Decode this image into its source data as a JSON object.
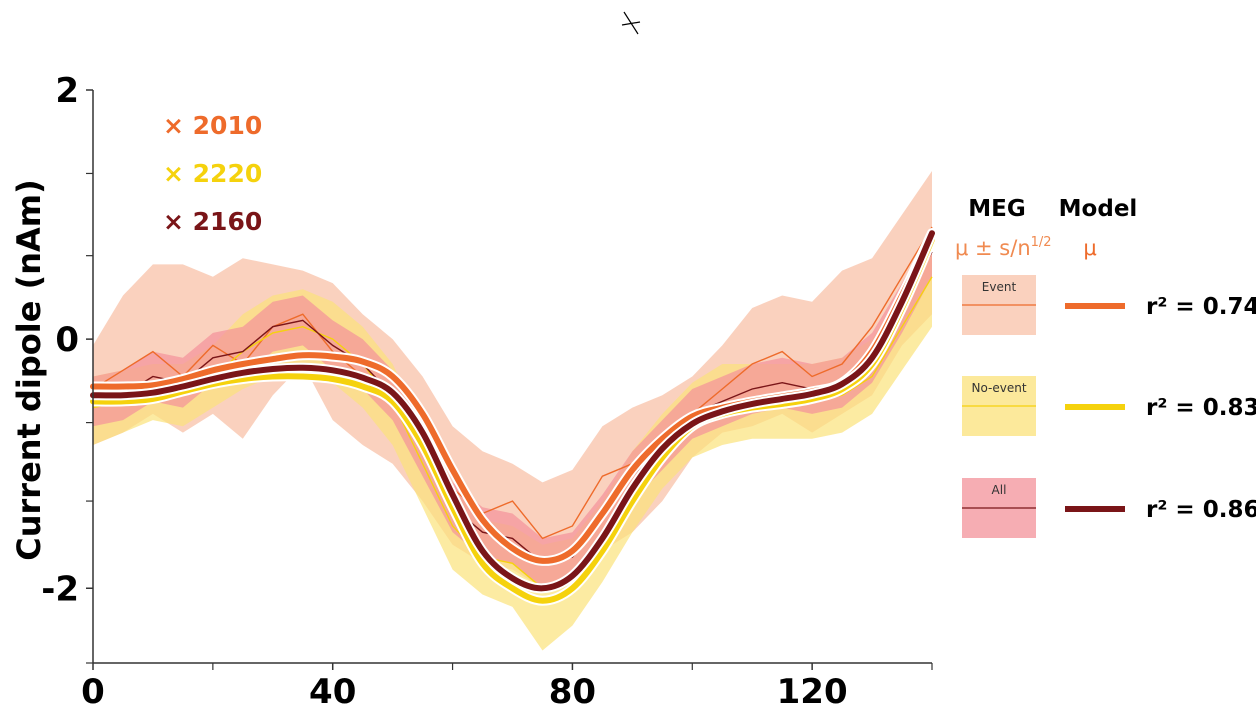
{
  "chart_data": {
    "type": "line",
    "xlabel": "",
    "ylabel": "Current dipole (nAm)",
    "xlim": [
      0,
      140
    ],
    "ylim": [
      -2.6,
      2.0
    ],
    "x_ticks": [
      0,
      40,
      80,
      120
    ],
    "x_minor_ticks": [
      20,
      60,
      100,
      140
    ],
    "y_ticks": [
      -2,
      0,
      2
    ],
    "y_minor_ticks": [
      -2.6,
      -1.3,
      -0.67,
      0.67,
      1.33
    ],
    "x_tick_labels": [
      "0",
      "40",
      "80",
      "120"
    ],
    "y_tick_labels": [
      "-2",
      "0",
      "2"
    ],
    "scale_factors": [
      {
        "label": "× 2010",
        "color": "#EE6B2B"
      },
      {
        "label": "× 2220",
        "color": "#F5D20D"
      },
      {
        "label": "× 2160",
        "color": "#7A1518"
      }
    ],
    "legend": {
      "placement": "right",
      "meg_header": "MEG",
      "model_header": "Model",
      "meg_stat": "μ ± s/n",
      "meg_stat_exp": "1/2",
      "model_stat": "μ",
      "entries": [
        {
          "box_label": "Event",
          "r2": "r² = 0.74"
        },
        {
          "box_label": "No-event",
          "r2": "r² = 0.83"
        },
        {
          "box_label": "All",
          "r2": "r² = 0.86"
        }
      ]
    },
    "series": [
      {
        "name": "Event",
        "line_color": "#EE6B2B",
        "band_color": "#F8C2A8",
        "x": [
          0,
          5,
          10,
          15,
          20,
          25,
          30,
          35,
          40,
          45,
          50,
          55,
          60,
          65,
          70,
          75,
          80,
          85,
          90,
          95,
          100,
          105,
          110,
          115,
          120,
          125,
          130,
          135,
          140
        ],
        "meg_mean": [
          -0.4,
          -0.25,
          -0.1,
          -0.3,
          -0.05,
          -0.2,
          0.1,
          0.2,
          -0.1,
          -0.3,
          -0.4,
          -0.8,
          -1.2,
          -1.4,
          -1.3,
          -1.6,
          -1.5,
          -1.1,
          -1.0,
          -0.9,
          -0.6,
          -0.4,
          -0.2,
          -0.1,
          -0.3,
          -0.2,
          0.1,
          0.5,
          0.9
        ],
        "meg_band_upper": [
          -0.05,
          0.35,
          0.6,
          0.6,
          0.5,
          0.65,
          0.6,
          0.55,
          0.45,
          0.2,
          0.0,
          -0.3,
          -0.7,
          -0.9,
          -1.0,
          -1.15,
          -1.05,
          -0.7,
          -0.55,
          -0.45,
          -0.3,
          -0.05,
          0.25,
          0.35,
          0.3,
          0.55,
          0.65,
          1.0,
          1.35
        ],
        "meg_band_lower": [
          -0.85,
          -0.75,
          -0.6,
          -0.75,
          -0.6,
          -0.8,
          -0.45,
          -0.2,
          -0.65,
          -0.85,
          -1.0,
          -1.3,
          -1.65,
          -1.8,
          -1.85,
          -2.0,
          -1.95,
          -1.7,
          -1.55,
          -1.3,
          -0.95,
          -0.75,
          -0.7,
          -0.6,
          -0.75,
          -0.6,
          -0.45,
          -0.05,
          0.2
        ],
        "model_mean": [
          -0.38,
          -0.38,
          -0.37,
          -0.32,
          -0.25,
          -0.2,
          -0.16,
          -0.13,
          -0.14,
          -0.18,
          -0.3,
          -0.6,
          -1.05,
          -1.45,
          -1.68,
          -1.78,
          -1.7,
          -1.4,
          -1.05,
          -0.8,
          -0.62,
          -0.55,
          -0.5,
          -0.46,
          -0.42,
          -0.35,
          -0.1,
          0.35,
          0.85
        ]
      },
      {
        "name": "No-event",
        "line_color": "#F5D20D",
        "band_color": "#FBE27A",
        "x": [
          0,
          5,
          10,
          15,
          20,
          25,
          30,
          35,
          40,
          45,
          50,
          55,
          60,
          65,
          70,
          75,
          80,
          85,
          90,
          95,
          100,
          105,
          110,
          115,
          120,
          125,
          130,
          135,
          140
        ],
        "meg_mean": [
          -0.55,
          -0.5,
          -0.4,
          -0.45,
          -0.3,
          -0.1,
          0.05,
          0.1,
          0.0,
          -0.2,
          -0.5,
          -1.0,
          -1.5,
          -1.75,
          -1.8,
          -2.0,
          -1.9,
          -1.6,
          -1.2,
          -0.9,
          -0.65,
          -0.55,
          -0.5,
          -0.5,
          -0.5,
          -0.45,
          -0.3,
          0.1,
          0.5
        ],
        "meg_band_upper": [
          -0.3,
          -0.25,
          -0.2,
          -0.2,
          -0.05,
          0.2,
          0.35,
          0.4,
          0.3,
          0.1,
          -0.2,
          -0.7,
          -1.2,
          -1.45,
          -1.5,
          -1.65,
          -1.6,
          -1.3,
          -0.9,
          -0.6,
          -0.35,
          -0.2,
          -0.2,
          -0.2,
          -0.2,
          -0.15,
          0.0,
          0.4,
          0.8
        ],
        "meg_band_lower": [
          -0.85,
          -0.75,
          -0.65,
          -0.7,
          -0.55,
          -0.4,
          -0.3,
          -0.25,
          -0.35,
          -0.55,
          -0.85,
          -1.35,
          -1.85,
          -2.05,
          -2.15,
          -2.5,
          -2.3,
          -1.95,
          -1.55,
          -1.2,
          -0.95,
          -0.85,
          -0.8,
          -0.8,
          -0.8,
          -0.75,
          -0.6,
          -0.25,
          0.1
        ],
        "model_mean": [
          -0.5,
          -0.5,
          -0.48,
          -0.42,
          -0.36,
          -0.32,
          -0.3,
          -0.3,
          -0.32,
          -0.38,
          -0.5,
          -0.85,
          -1.35,
          -1.8,
          -2.0,
          -2.1,
          -2.0,
          -1.7,
          -1.3,
          -0.95,
          -0.7,
          -0.6,
          -0.55,
          -0.52,
          -0.48,
          -0.4,
          -0.2,
          0.25,
          0.8
        ]
      },
      {
        "name": "All",
        "line_color": "#7A1518",
        "band_color": "#F3929A",
        "x": [
          0,
          5,
          10,
          15,
          20,
          25,
          30,
          35,
          40,
          45,
          50,
          55,
          60,
          65,
          70,
          75,
          80,
          85,
          90,
          95,
          100,
          105,
          110,
          115,
          120,
          125,
          130,
          135,
          140
        ],
        "meg_mean": [
          -0.5,
          -0.45,
          -0.3,
          -0.35,
          -0.15,
          -0.1,
          0.1,
          0.15,
          -0.05,
          -0.2,
          -0.45,
          -0.9,
          -1.35,
          -1.55,
          -1.6,
          -1.8,
          -1.75,
          -1.45,
          -1.1,
          -0.85,
          -0.6,
          -0.5,
          -0.4,
          -0.35,
          -0.4,
          -0.35,
          -0.15,
          0.25,
          0.7
        ],
        "meg_band_upper": [
          -0.3,
          -0.25,
          -0.1,
          -0.15,
          0.05,
          0.1,
          0.3,
          0.35,
          0.15,
          0.0,
          -0.25,
          -0.7,
          -1.15,
          -1.35,
          -1.4,
          -1.6,
          -1.55,
          -1.25,
          -0.9,
          -0.65,
          -0.4,
          -0.3,
          -0.2,
          -0.15,
          -0.2,
          -0.15,
          0.05,
          0.45,
          0.9
        ],
        "meg_band_lower": [
          -0.7,
          -0.65,
          -0.5,
          -0.55,
          -0.35,
          -0.3,
          -0.1,
          -0.05,
          -0.25,
          -0.4,
          -0.65,
          -1.1,
          -1.55,
          -1.75,
          -1.8,
          -2.0,
          -1.95,
          -1.65,
          -1.3,
          -1.05,
          -0.8,
          -0.7,
          -0.6,
          -0.55,
          -0.6,
          -0.55,
          -0.35,
          0.05,
          0.5
        ],
        "model_mean": [
          -0.45,
          -0.45,
          -0.43,
          -0.38,
          -0.32,
          -0.27,
          -0.24,
          -0.23,
          -0.25,
          -0.31,
          -0.43,
          -0.75,
          -1.25,
          -1.7,
          -1.92,
          -2.0,
          -1.9,
          -1.6,
          -1.2,
          -0.88,
          -0.68,
          -0.58,
          -0.52,
          -0.48,
          -0.44,
          -0.36,
          -0.15,
          0.3,
          0.85
        ]
      }
    ]
  }
}
